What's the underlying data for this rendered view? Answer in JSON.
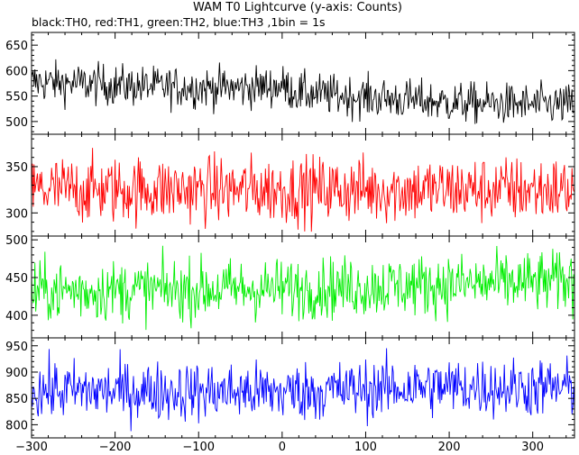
{
  "chart_data": {
    "type": "line",
    "title": "WAM T0 Lightcurve (y-axis: Counts)",
    "subtitle": "black:TH0, red:TH1, green:TH2, blue:TH3 ,1bin = 1s",
    "xlabel": "",
    "ylabel": "",
    "xlim": [
      -300,
      350
    ],
    "x_ticks": [
      -300,
      -200,
      -100,
      0,
      100,
      200,
      300
    ],
    "grid": false,
    "panels": [
      {
        "series_name": "TH0",
        "color": "#000000",
        "ylim": [
          475,
          675
        ],
        "y_ticks": [
          500,
          550,
          600,
          650
        ],
        "baseline_profile": [
          [
            -300,
            578
          ],
          [
            -250,
            575
          ],
          [
            -150,
            568
          ],
          [
            -50,
            566
          ],
          [
            0,
            570
          ],
          [
            20,
            556
          ],
          [
            100,
            548
          ],
          [
            200,
            537
          ],
          [
            300,
            533
          ],
          [
            350,
            533
          ]
        ],
        "noise_amplitude": 20
      },
      {
        "series_name": "TH1",
        "color": "#ff0000",
        "ylim": [
          275,
          385
        ],
        "y_ticks": [
          300,
          350
        ],
        "baseline_profile": [
          [
            -300,
            325
          ],
          [
            350,
            325
          ]
        ],
        "noise_amplitude": 18
      },
      {
        "series_name": "TH2",
        "color": "#00ee00",
        "ylim": [
          370,
          505
        ],
        "y_ticks": [
          400,
          450,
          500
        ],
        "baseline_profile": [
          [
            -300,
            432
          ],
          [
            0,
            435
          ],
          [
            350,
            445
          ]
        ],
        "noise_amplitude": 20
      },
      {
        "series_name": "TH3",
        "color": "#0000ff",
        "ylim": [
          775,
          965
        ],
        "y_ticks": [
          800,
          850,
          900,
          950
        ],
        "baseline_profile": [
          [
            -300,
            865
          ],
          [
            0,
            862
          ],
          [
            180,
            872
          ],
          [
            350,
            870
          ]
        ],
        "noise_amplitude": 28
      }
    ]
  }
}
